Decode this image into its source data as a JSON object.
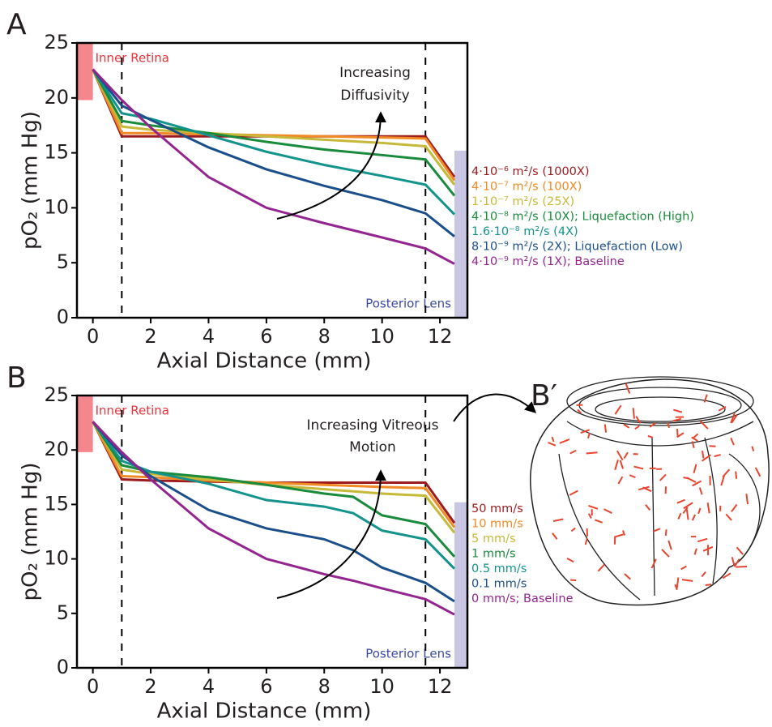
{
  "chart_data": [
    {
      "type": "line",
      "panel_label": "A",
      "xlabel": "Axial Distance (mm)",
      "ylabel": "pO₂ (mm Hg)",
      "xlim": [
        -0.55,
        12.95
      ],
      "ylim": [
        0,
        25
      ],
      "xticks": [
        0,
        2,
        4,
        6,
        8,
        10,
        12
      ],
      "yticks": [
        0,
        5,
        10,
        15,
        20,
        25
      ],
      "annotation_lines": [
        "Increasing",
        "Diffusivity"
      ],
      "dashed_x": [
        1,
        11.5
      ],
      "regions": [
        {
          "label": "Inner Retina",
          "color": "#f4868e",
          "xlim": [
            -0.55,
            0
          ],
          "ylim": [
            19.8,
            25
          ],
          "label_color": "#e8343a"
        },
        {
          "label": "Posterior Lens",
          "color": "#c8c6e2",
          "xlim": [
            12.5,
            12.95
          ],
          "ylim": [
            0,
            15.2
          ],
          "label_color": "#3a4aa0"
        }
      ],
      "x": [
        0,
        1,
        2,
        4,
        6,
        8,
        10,
        11.5,
        12.5
      ],
      "series": [
        {
          "name": "4·10⁻⁶ m²/s (1000X)",
          "color": "#9b1b1f",
          "values": [
            22.6,
            16.5,
            16.5,
            16.5,
            16.5,
            16.5,
            16.5,
            16.5,
            12.8
          ]
        },
        {
          "name": "4·10⁻⁷ m²/s (100X)",
          "color": "#f08a24",
          "values": [
            22.6,
            16.8,
            16.8,
            16.7,
            16.6,
            16.5,
            16.4,
            16.3,
            12.5
          ]
        },
        {
          "name": "1·10⁻⁷ m²/s (25X)",
          "color": "#c6b93a",
          "values": [
            22.6,
            17.4,
            17.1,
            16.8,
            16.5,
            16.2,
            15.9,
            15.6,
            12.1
          ]
        },
        {
          "name": "4·10⁻⁸ m²/s (10X); Liquefaction (High)",
          "color": "#1a8a3c",
          "values": [
            22.6,
            17.9,
            17.5,
            16.8,
            16.0,
            15.3,
            14.8,
            14.4,
            11.1
          ]
        },
        {
          "name": "1.6·10⁻⁸ m²/s (4X)",
          "color": "#13938c",
          "values": [
            22.6,
            18.6,
            18.1,
            16.6,
            15.1,
            13.9,
            12.9,
            12.1,
            9.4
          ]
        },
        {
          "name": "8·10⁻⁹ m²/s (2X); Liquefaction (Low)",
          "color": "#1b4f8a",
          "values": [
            22.6,
            19.3,
            18.0,
            15.5,
            13.5,
            12.0,
            10.7,
            9.5,
            7.4
          ]
        },
        {
          "name": "4·10⁻⁹ m²/s (1X); Baseline",
          "color": "#93258f",
          "values": [
            22.6,
            19.8,
            17.3,
            12.8,
            10.0,
            8.6,
            7.3,
            6.3,
            4.9
          ]
        }
      ]
    },
    {
      "type": "line",
      "panel_label": "B",
      "xlabel": "Axial Distance (mm)",
      "ylabel": "pO₂ (mm Hg)",
      "xlim": [
        -0.55,
        12.95
      ],
      "ylim": [
        0,
        25
      ],
      "xticks": [
        0,
        2,
        4,
        6,
        8,
        10,
        12
      ],
      "yticks": [
        0,
        5,
        10,
        15,
        20,
        25
      ],
      "annotation_lines": [
        "Increasing Vitreous",
        "Motion"
      ],
      "dashed_x": [
        1,
        11.5
      ],
      "regions": [
        {
          "label": "Inner Retina",
          "color": "#f4868e",
          "xlim": [
            -0.55,
            0
          ],
          "ylim": [
            19.8,
            25
          ],
          "label_color": "#e8343a"
        },
        {
          "label": "Posterior Lens",
          "color": "#c8c6e2",
          "xlim": [
            12.5,
            12.95
          ],
          "ylim": [
            0,
            15.2
          ],
          "label_color": "#3a4aa0"
        }
      ],
      "x": [
        0,
        1,
        2,
        4,
        6,
        8,
        9,
        10,
        11.5,
        12.5
      ],
      "series": [
        {
          "name": "50 mm/s",
          "color": "#9b1b1f",
          "values": [
            22.6,
            17.3,
            17.2,
            17.1,
            17.0,
            17.0,
            17.0,
            17.0,
            17.0,
            13.3
          ]
        },
        {
          "name": "10 mm/s",
          "color": "#f08a24",
          "values": [
            22.6,
            17.6,
            17.5,
            17.2,
            17.0,
            16.8,
            16.7,
            16.6,
            16.5,
            12.9
          ]
        },
        {
          "name": "5 mm/s",
          "color": "#c6b93a",
          "values": [
            22.6,
            18.2,
            17.8,
            17.3,
            16.8,
            16.4,
            16.2,
            16.0,
            15.8,
            12.4
          ]
        },
        {
          "name": "1 mm/s",
          "color": "#1a8a3c",
          "values": [
            22.6,
            18.6,
            18.0,
            17.5,
            16.8,
            16.0,
            15.7,
            14.0,
            13.2,
            10.2
          ]
        },
        {
          "name": "0.5 mm/s",
          "color": "#13938c",
          "values": [
            22.6,
            19.0,
            18.0,
            16.9,
            15.4,
            14.8,
            14.2,
            12.6,
            11.8,
            9.1
          ]
        },
        {
          "name": "0.1 mm/s",
          "color": "#1b4f8a",
          "values": [
            22.6,
            19.5,
            17.6,
            14.5,
            12.8,
            11.8,
            10.8,
            9.2,
            7.8,
            6.1
          ]
        },
        {
          "name": "0 mm/s; Baseline",
          "color": "#93258f",
          "values": [
            22.6,
            19.8,
            17.3,
            12.8,
            10.0,
            8.6,
            8.0,
            7.3,
            6.3,
            4.9
          ]
        }
      ]
    }
  ],
  "illustration_label": "B′"
}
